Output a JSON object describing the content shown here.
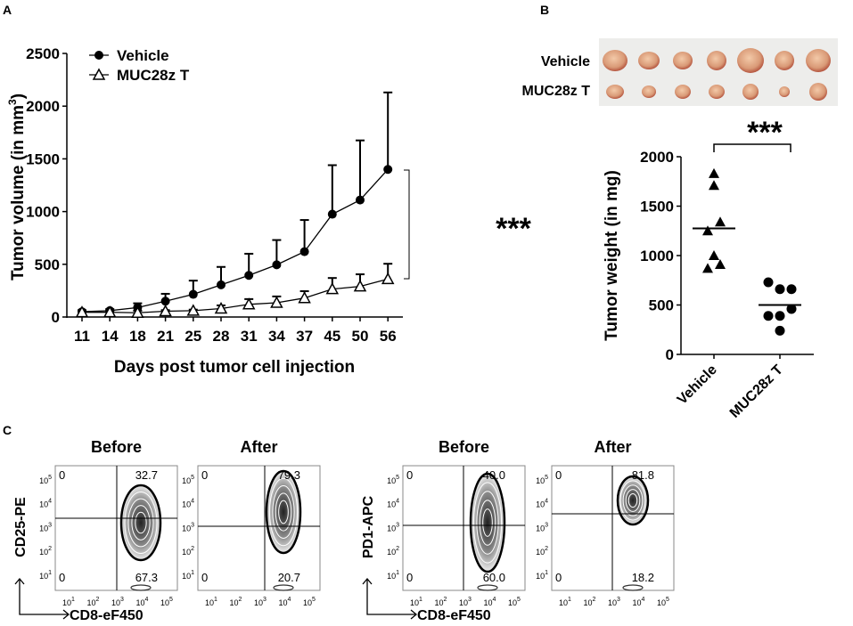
{
  "panel_labels": {
    "a": "A",
    "b": "B",
    "c": "C"
  },
  "chart_data": [
    {
      "id": "A",
      "type": "line",
      "xlabel": "Days post tumor cell injection",
      "ylabel": "Tumor volume (in mm",
      "ylabel_sup": "3",
      "ylabel_close": ")",
      "categories": [
        "11",
        "14",
        "18",
        "21",
        "25",
        "28",
        "31",
        "34",
        "37",
        "45",
        "50",
        "56"
      ],
      "ylim": [
        0,
        2500
      ],
      "yticks": [
        0,
        500,
        1000,
        1500,
        2000,
        2500
      ],
      "grid": false,
      "legend_position": "top-left",
      "series": [
        {
          "name": "Vehicle",
          "marker": "filled-circle",
          "values": [
            50,
            60,
            90,
            150,
            215,
            305,
            395,
            495,
            620,
            975,
            1110,
            1400
          ],
          "error_upper": [
            65,
            75,
            130,
            220,
            345,
            475,
            600,
            730,
            920,
            1440,
            1675,
            2130
          ]
        },
        {
          "name": "MUC28z T",
          "marker": "open-triangle",
          "values": [
            45,
            45,
            40,
            55,
            60,
            80,
            120,
            135,
            180,
            265,
            290,
            360
          ],
          "error_upper": [
            60,
            60,
            60,
            65,
            70,
            110,
            170,
            195,
            245,
            370,
            405,
            505
          ]
        }
      ],
      "significance": "***"
    },
    {
      "id": "B",
      "type": "scatter",
      "ylabel": "Tumor weight (in mg)",
      "categories": [
        "Vehicle",
        "MUC28z T"
      ],
      "ylim": [
        0,
        2000
      ],
      "yticks": [
        0,
        500,
        1000,
        1500,
        2000
      ],
      "series": [
        {
          "category": "Vehicle",
          "marker": "filled-triangle",
          "values": [
            1830,
            1710,
            1340,
            1250,
            1000,
            910,
            870
          ],
          "mean": 1275
        },
        {
          "category": "MUC28z T",
          "marker": "filled-circle",
          "values": [
            730,
            660,
            660,
            460,
            390,
            390,
            240
          ],
          "mean": 500
        }
      ],
      "significance": "***",
      "photo_row_labels": [
        "Vehicle",
        "MUC28z T"
      ]
    }
  ],
  "flow": {
    "x_axis_label": "CD8-eF450",
    "tick_base": "10",
    "tick_exps": [
      "1",
      "2",
      "3",
      "4",
      "5"
    ],
    "groups": [
      {
        "y_axis_label": "CD25-PE",
        "plots": [
          {
            "title": "Before",
            "q_ul": "0",
            "q_ur": "32.7",
            "q_ll": "0",
            "q_lr": "67.3"
          },
          {
            "title": "After",
            "q_ul": "0",
            "q_ur": "79.3",
            "q_ll": "0",
            "q_lr": "20.7"
          }
        ]
      },
      {
        "y_axis_label": "PD1-APC",
        "plots": [
          {
            "title": "Before",
            "q_ul": "0",
            "q_ur": "40.0",
            "q_ll": "0",
            "q_lr": "60.0"
          },
          {
            "title": "After",
            "q_ul": "0",
            "q_ur": "81.8",
            "q_ll": "0",
            "q_lr": "18.2"
          }
        ]
      }
    ]
  }
}
